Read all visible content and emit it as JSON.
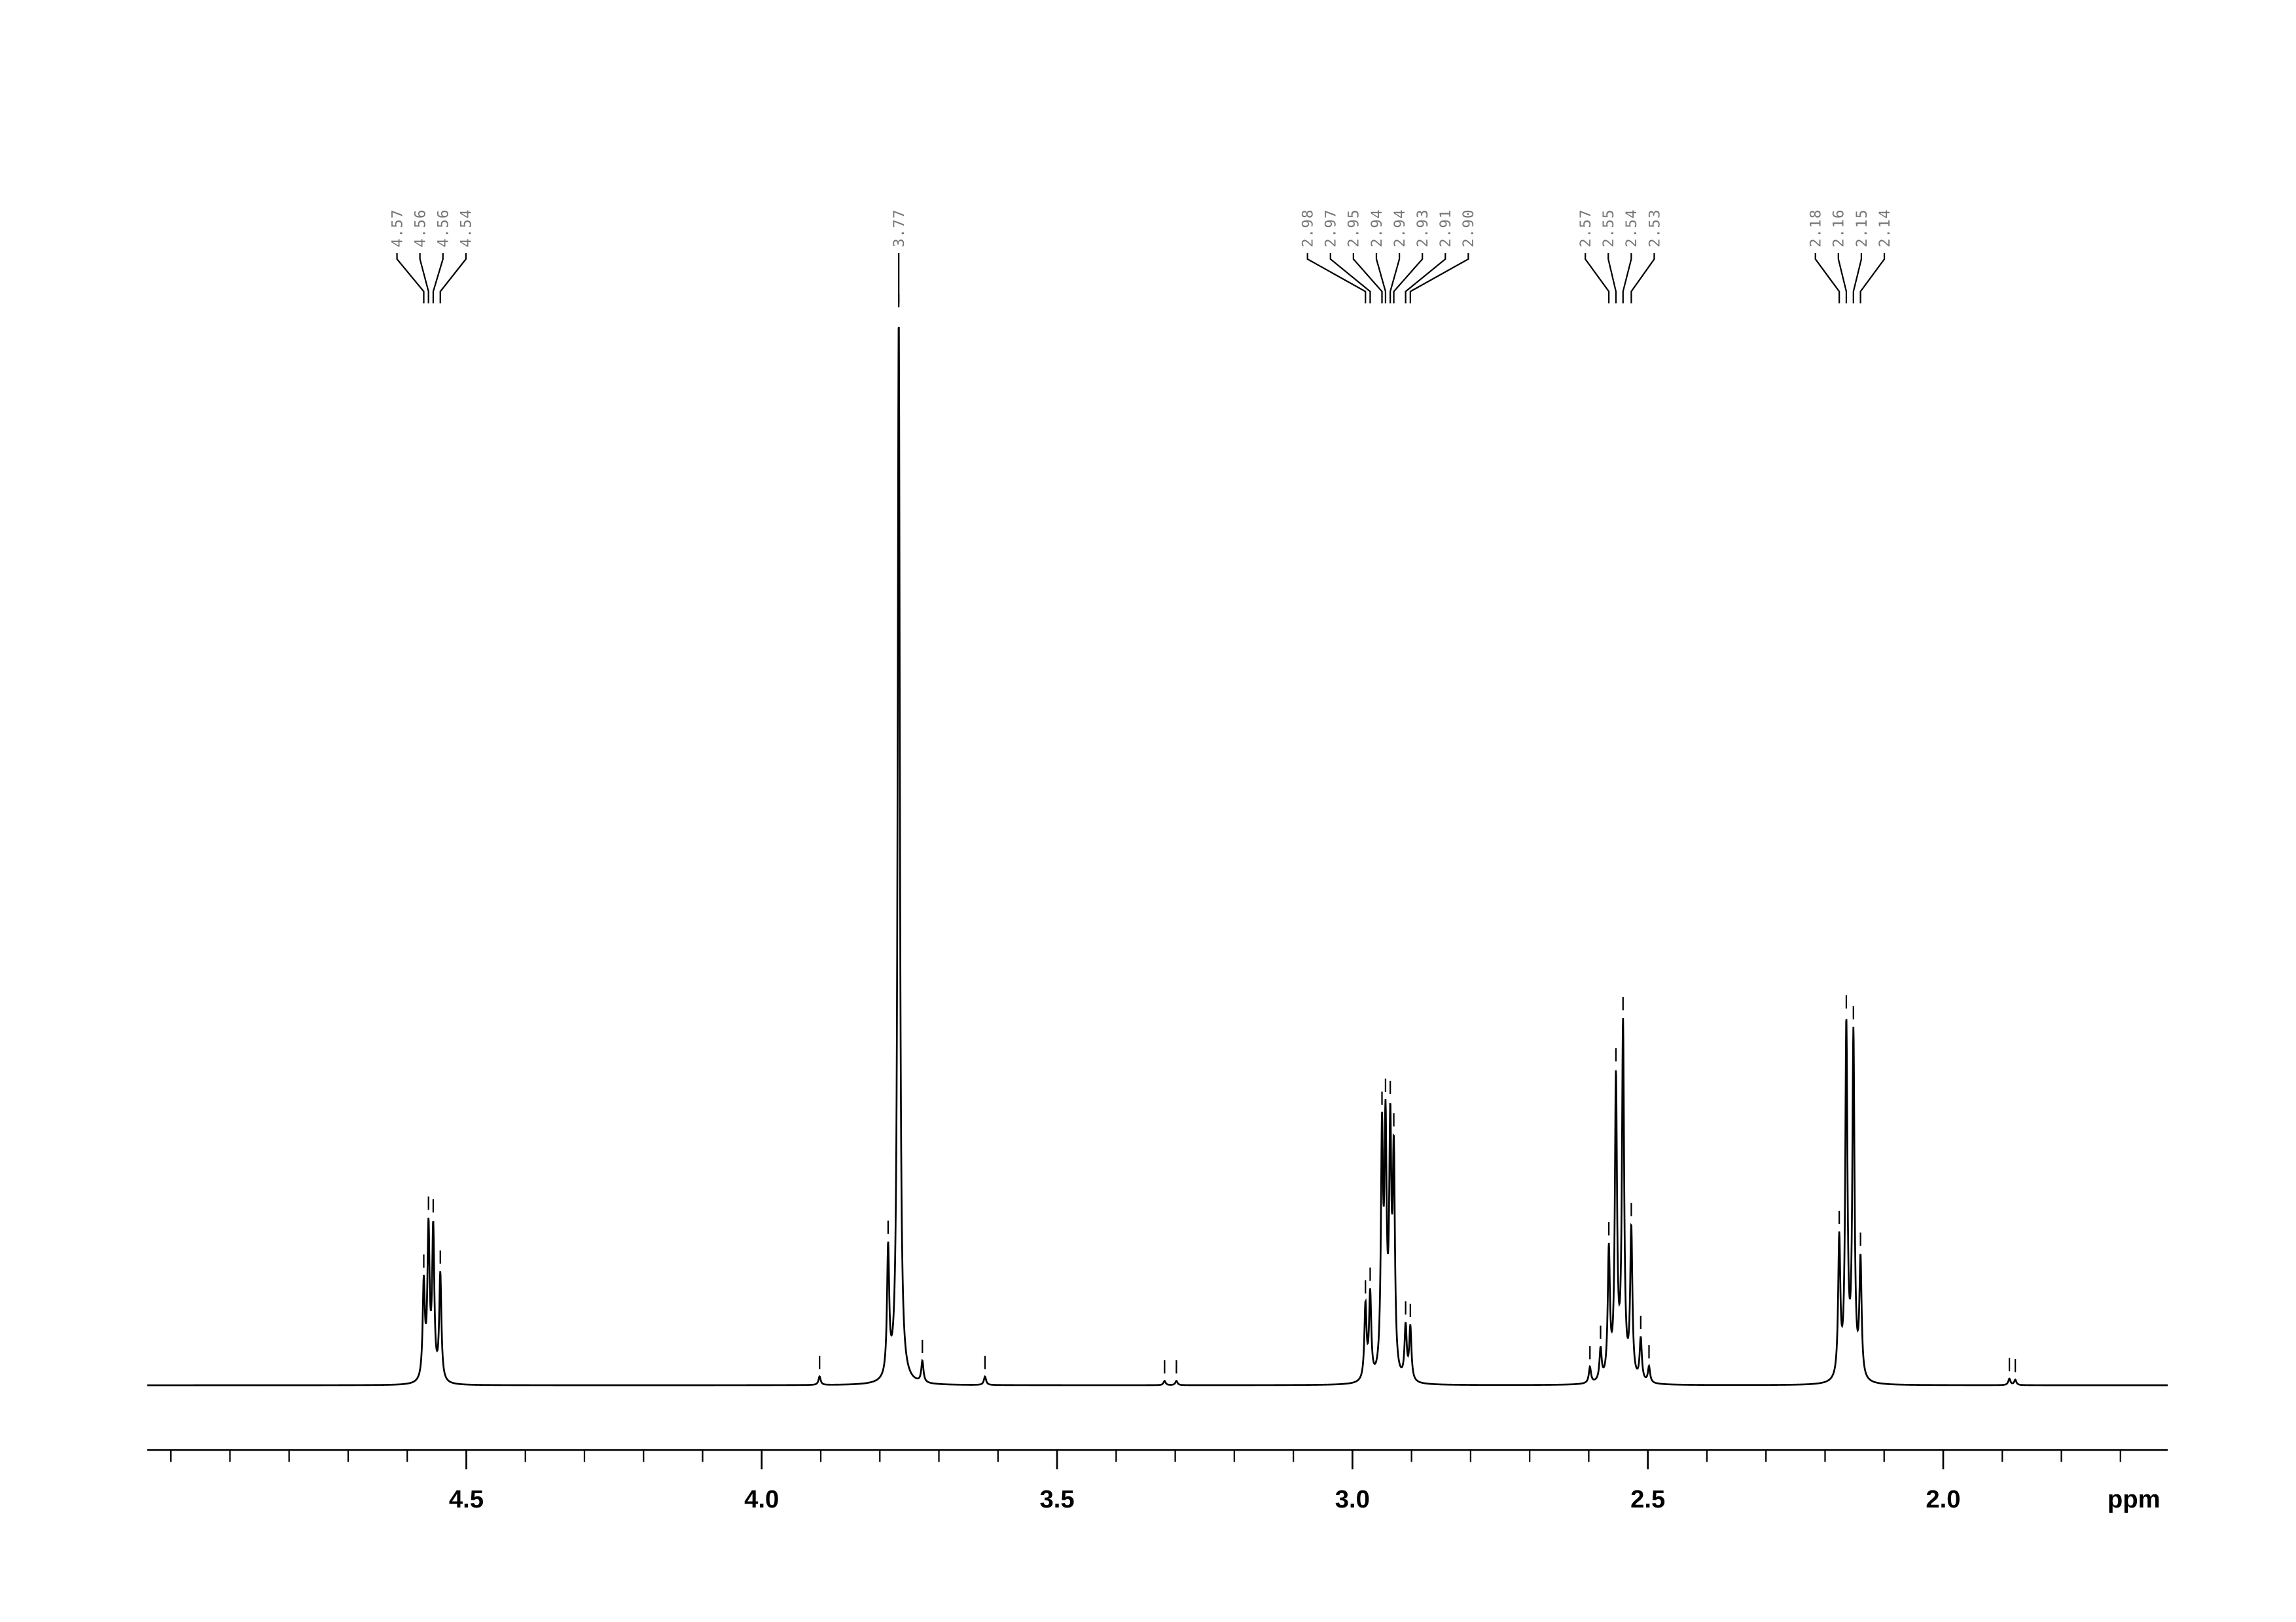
{
  "chart_data": {
    "type": "nmr",
    "xlabel": "ppm",
    "xlim": [
      5.04,
      1.62
    ],
    "xticks": [
      4.5,
      {
        "value": 4,
        "label": "4.0"
      },
      3.5,
      {
        "value": 3,
        "label": "3.0"
      },
      2.5,
      {
        "value": 2,
        "label": "2.0"
      }
    ],
    "xminorticks": [
      5.0,
      4.9,
      4.8,
      4.7,
      4.6,
      4.4,
      4.3,
      4.2,
      4.1,
      3.9,
      3.8,
      3.7,
      3.6,
      3.4,
      3.3,
      3.2,
      3.1,
      2.9,
      2.8,
      2.7,
      2.6,
      2.4,
      2.3,
      2.2,
      2.1,
      1.9,
      1.8,
      1.7
    ],
    "ylim": [
      0,
      100
    ],
    "color": "#000000",
    "label_color": "#777777",
    "peaks": {
      "x": [
        4.572,
        4.564,
        4.556,
        4.544,
        3.902,
        3.786,
        3.768,
        3.728,
        3.622,
        3.318,
        3.298,
        2.978,
        2.97,
        2.95,
        2.944,
        2.936,
        2.93,
        2.91,
        2.902,
        2.598,
        2.58,
        2.566,
        2.554,
        2.542,
        2.528,
        2.512,
        2.498,
        2.176,
        2.164,
        2.152,
        2.14,
        1.888,
        1.878
      ],
      "values": [
        9,
        14,
        14,
        10,
        0.8,
        12,
        100,
        2,
        0.8,
        0.4,
        0.4,
        7,
        8,
        22,
        22,
        22,
        20,
        5,
        5,
        1.5,
        3,
        12,
        28,
        33,
        14,
        4,
        1.5,
        13,
        33,
        32,
        11,
        0.6,
        0.5
      ],
      "labels": [
        "4.57",
        "4.56",
        "4.56",
        "4.54",
        null,
        null,
        "3.77",
        null,
        null,
        null,
        null,
        "2.98",
        "2.97",
        "2.95",
        "2.94",
        "2.94",
        "2.93",
        "2.91",
        "2.90",
        null,
        null,
        "2.57",
        "2.55",
        "2.54",
        "2.53",
        null,
        null,
        "2.18",
        "2.16",
        "2.15",
        "2.14",
        null,
        null
      ]
    }
  }
}
